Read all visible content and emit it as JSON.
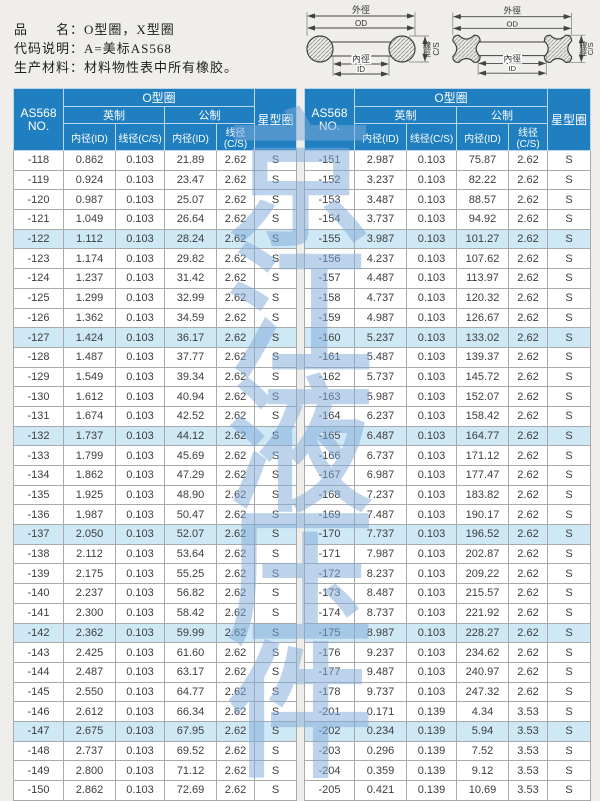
{
  "info": {
    "product_line": "品　　名：O型圈，X型圈",
    "code_line": "代码说明：A=美标AS568",
    "material_line": "生产材料：材料物性表中所有橡胶。"
  },
  "diagram_labels": {
    "od_cn": "外徑",
    "od_en": "OD",
    "id_cn": "內徑",
    "id_en": "ID",
    "cs_cn": "線徑",
    "cs_en": "C/S"
  },
  "table": {
    "header": {
      "no_line1": "AS568",
      "no_line2": "NO.",
      "group_oring": "O型圈",
      "group_star": "星型圈",
      "sub_imperial": "英制",
      "sub_metric": "公制",
      "col_id": "内径(ID)",
      "col_cs": "线径(C/S)"
    },
    "highlight_interval": 5,
    "left_rows": [
      [
        "-118",
        "0.862",
        "0.103",
        "21.89",
        "2.62",
        "S"
      ],
      [
        "-119",
        "0.924",
        "0.103",
        "23.47",
        "2.62",
        "S"
      ],
      [
        "-120",
        "0.987",
        "0.103",
        "25.07",
        "2.62",
        "S"
      ],
      [
        "-121",
        "1.049",
        "0.103",
        "26.64",
        "2.62",
        "S"
      ],
      [
        "-122",
        "1.112",
        "0.103",
        "28.24",
        "2.62",
        "S"
      ],
      [
        "-123",
        "1.174",
        "0.103",
        "29.82",
        "2.62",
        "S"
      ],
      [
        "-124",
        "1.237",
        "0.103",
        "31.42",
        "2.62",
        "S"
      ],
      [
        "-125",
        "1.299",
        "0.103",
        "32.99",
        "2.62",
        "S"
      ],
      [
        "-126",
        "1.362",
        "0.103",
        "34.59",
        "2.62",
        "S"
      ],
      [
        "-127",
        "1.424",
        "0.103",
        "36.17",
        "2.62",
        "S"
      ],
      [
        "-128",
        "1.487",
        "0.103",
        "37.77",
        "2.62",
        "S"
      ],
      [
        "-129",
        "1.549",
        "0.103",
        "39.34",
        "2.62",
        "S"
      ],
      [
        "-130",
        "1.612",
        "0.103",
        "40.94",
        "2.62",
        "S"
      ],
      [
        "-131",
        "1.674",
        "0.103",
        "42.52",
        "2.62",
        "S"
      ],
      [
        "-132",
        "1.737",
        "0.103",
        "44.12",
        "2.62",
        "S"
      ],
      [
        "-133",
        "1.799",
        "0.103",
        "45.69",
        "2.62",
        "S"
      ],
      [
        "-134",
        "1.862",
        "0.103",
        "47.29",
        "2.62",
        "S"
      ],
      [
        "-135",
        "1.925",
        "0.103",
        "48.90",
        "2.62",
        "S"
      ],
      [
        "-136",
        "1.987",
        "0.103",
        "50.47",
        "2.62",
        "S"
      ],
      [
        "-137",
        "2.050",
        "0.103",
        "52.07",
        "2.62",
        "S"
      ],
      [
        "-138",
        "2.112",
        "0.103",
        "53.64",
        "2.62",
        "S"
      ],
      [
        "-139",
        "2.175",
        "0.103",
        "55.25",
        "2.62",
        "S"
      ],
      [
        "-140",
        "2.237",
        "0.103",
        "56.82",
        "2.62",
        "S"
      ],
      [
        "-141",
        "2.300",
        "0.103",
        "58.42",
        "2.62",
        "S"
      ],
      [
        "-142",
        "2.362",
        "0.103",
        "59.99",
        "2.62",
        "S"
      ],
      [
        "-143",
        "2.425",
        "0.103",
        "61.60",
        "2.62",
        "S"
      ],
      [
        "-144",
        "2.487",
        "0.103",
        "63.17",
        "2.62",
        "S"
      ],
      [
        "-145",
        "2.550",
        "0.103",
        "64.77",
        "2.62",
        "S"
      ],
      [
        "-146",
        "2.612",
        "0.103",
        "66.34",
        "2.62",
        "S"
      ],
      [
        "-147",
        "2.675",
        "0.103",
        "67.95",
        "2.62",
        "S"
      ],
      [
        "-148",
        "2.737",
        "0.103",
        "69.52",
        "2.62",
        "S"
      ],
      [
        "-149",
        "2.800",
        "0.103",
        "71.12",
        "2.62",
        "S"
      ],
      [
        "-150",
        "2.862",
        "0.103",
        "72.69",
        "2.62",
        "S"
      ]
    ],
    "right_rows": [
      [
        "-151",
        "2.987",
        "0.103",
        "75.87",
        "2.62",
        "S"
      ],
      [
        "-152",
        "3.237",
        "0.103",
        "82.22",
        "2.62",
        "S"
      ],
      [
        "-153",
        "3.487",
        "0.103",
        "88.57",
        "2.62",
        "S"
      ],
      [
        "-154",
        "3.737",
        "0.103",
        "94.92",
        "2.62",
        "S"
      ],
      [
        "-155",
        "3.987",
        "0.103",
        "101.27",
        "2.62",
        "S"
      ],
      [
        "-156",
        "4.237",
        "0.103",
        "107.62",
        "2.62",
        "S"
      ],
      [
        "-157",
        "4.487",
        "0.103",
        "113.97",
        "2.62",
        "S"
      ],
      [
        "-158",
        "4.737",
        "0.103",
        "120.32",
        "2.62",
        "S"
      ],
      [
        "-159",
        "4.987",
        "0.103",
        "126.67",
        "2.62",
        "S"
      ],
      [
        "-160",
        "5.237",
        "0.103",
        "133.02",
        "2.62",
        "S"
      ],
      [
        "-161",
        "5.487",
        "0.103",
        "139.37",
        "2.62",
        "S"
      ],
      [
        "-162",
        "5.737",
        "0.103",
        "145.72",
        "2.62",
        "S"
      ],
      [
        "-163",
        "5.987",
        "0.103",
        "152.07",
        "2.62",
        "S"
      ],
      [
        "-164",
        "6.237",
        "0.103",
        "158.42",
        "2.62",
        "S"
      ],
      [
        "-165",
        "6.487",
        "0.103",
        "164.77",
        "2.62",
        "S"
      ],
      [
        "-166",
        "6.737",
        "0.103",
        "171.12",
        "2.62",
        "S"
      ],
      [
        "-167",
        "6.987",
        "0.103",
        "177.47",
        "2.62",
        "S"
      ],
      [
        "-168",
        "7.237",
        "0.103",
        "183.82",
        "2.62",
        "S"
      ],
      [
        "-169",
        "7.487",
        "0.103",
        "190.17",
        "2.62",
        "S"
      ],
      [
        "-170",
        "7.737",
        "0.103",
        "196.52",
        "2.62",
        "S"
      ],
      [
        "-171",
        "7.987",
        "0.103",
        "202.87",
        "2.62",
        "S"
      ],
      [
        "-172",
        "8.237",
        "0.103",
        "209.22",
        "2.62",
        "S"
      ],
      [
        "-173",
        "8.487",
        "0.103",
        "215.57",
        "2.62",
        "S"
      ],
      [
        "-174",
        "8.737",
        "0.103",
        "221.92",
        "2.62",
        "S"
      ],
      [
        "-175",
        "8.987",
        "0.103",
        "228.27",
        "2.62",
        "S"
      ],
      [
        "-176",
        "9.237",
        "0.103",
        "234.62",
        "2.62",
        "S"
      ],
      [
        "-177",
        "9.487",
        "0.103",
        "240.97",
        "2.62",
        "S"
      ],
      [
        "-178",
        "9.737",
        "0.103",
        "247.32",
        "2.62",
        "S"
      ],
      [
        "-201",
        "0.171",
        "0.139",
        "4.34",
        "3.53",
        "S"
      ],
      [
        "-202",
        "0.234",
        "0.139",
        "5.94",
        "3.53",
        "S"
      ],
      [
        "-203",
        "0.296",
        "0.139",
        "7.52",
        "3.53",
        "S"
      ],
      [
        "-204",
        "0.359",
        "0.139",
        "9.12",
        "3.53",
        "S"
      ],
      [
        "-205",
        "0.421",
        "0.139",
        "10.69",
        "3.53",
        "S"
      ]
    ]
  },
  "watermark": {
    "characters": [
      "京",
      "江",
      "液",
      "压",
      "件"
    ],
    "color": "#7eabd9"
  },
  "colors": {
    "header_blue": "#1f7fc0",
    "row_highlight": "#cfe8f6",
    "page_background": "#efeeea",
    "table_border": "#a9a9a9",
    "body_text": "#3d3d3d"
  }
}
